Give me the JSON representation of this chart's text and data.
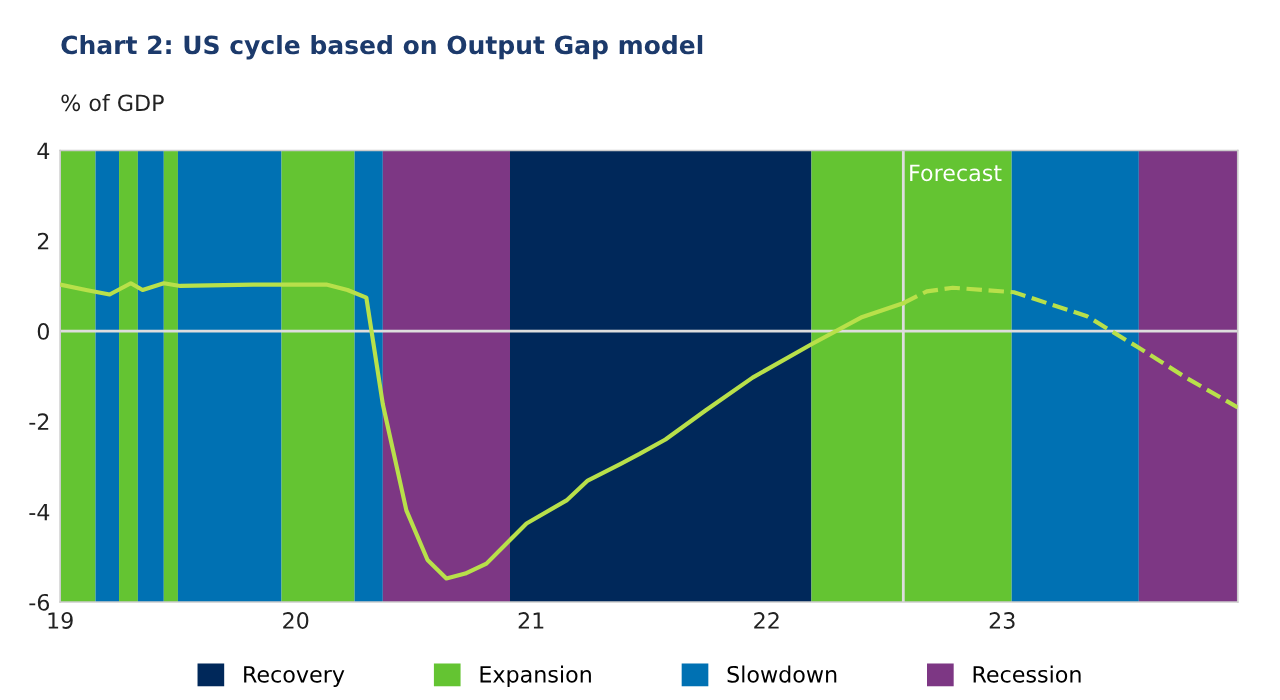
{
  "chart_data": {
    "type": "line",
    "title": "Chart 2: US cycle based on Output Gap model",
    "ylabel": "% of GDP",
    "series": [
      {
        "color": "#b8e04a",
        "line_style": "solid",
        "x": [
          2019.0,
          2019.11,
          2019.21,
          2019.3,
          2019.35,
          2019.44,
          2019.51,
          2019.82,
          2020.13,
          2020.22,
          2020.3,
          2020.37,
          2020.47,
          2020.56,
          2020.64,
          2020.72,
          2020.81,
          2020.98,
          2021.15,
          2021.24,
          2021.38,
          2021.46,
          2021.57,
          2021.74,
          2021.94,
          2022.19,
          2022.4,
          2022.58
        ],
        "values": [
          1.03,
          0.91,
          0.81,
          1.06,
          0.91,
          1.06,
          1.0,
          1.03,
          1.03,
          0.91,
          0.74,
          -1.62,
          -3.97,
          -5.07,
          -5.48,
          -5.37,
          -5.15,
          -4.26,
          -3.75,
          -3.31,
          -2.94,
          -2.72,
          -2.4,
          -1.76,
          -1.03,
          -0.29,
          0.3,
          0.62
        ]
      },
      {
        "color": "#b8e04a",
        "line_style": "dashed",
        "x": [
          2022.58,
          2022.68,
          2022.79,
          2023.05,
          2023.36,
          2023.58,
          2023.78,
          2024.0
        ],
        "values": [
          0.62,
          0.88,
          0.96,
          0.86,
          0.33,
          -0.37,
          -1.03,
          -1.69
        ]
      }
    ],
    "bands": [
      {
        "axis": "x",
        "from": 2019.0,
        "to": 2019.15,
        "label": "Expansion",
        "color": "#64c432"
      },
      {
        "axis": "x",
        "from": 2019.15,
        "to": 2019.25,
        "label": "Slowdown",
        "color": "#0071b3"
      },
      {
        "axis": "x",
        "from": 2019.25,
        "to": 2019.33,
        "color": "#64c432"
      },
      {
        "axis": "x",
        "from": 2019.33,
        "to": 2019.44,
        "color": "#0071b3"
      },
      {
        "axis": "x",
        "from": 2019.44,
        "to": 2019.5,
        "color": "#64c432"
      },
      {
        "axis": "x",
        "from": 2019.5,
        "to": 2019.94,
        "color": "#0071b3"
      },
      {
        "axis": "x",
        "from": 2019.94,
        "to": 2020.25,
        "color": "#64c432"
      },
      {
        "axis": "x",
        "from": 2020.25,
        "to": 2020.37,
        "color": "#0071b3"
      },
      {
        "axis": "x",
        "from": 2020.37,
        "to": 2020.91,
        "label": "Recession",
        "color": "#7d3784"
      },
      {
        "axis": "x",
        "from": 2020.91,
        "to": 2022.19,
        "label": "Recovery",
        "color": "#00285a"
      },
      {
        "axis": "x",
        "from": 2022.19,
        "to": 2023.04,
        "color": "#64c432"
      },
      {
        "axis": "x",
        "from": 2023.04,
        "to": 2023.58,
        "color": "#0071b3"
      },
      {
        "axis": "x",
        "from": 2023.58,
        "to": 2024.0,
        "color": "#7d3784"
      }
    ],
    "ref_lines": [
      {
        "axis": "y",
        "value": 0,
        "color": "#dddddd"
      },
      {
        "axis": "x",
        "value": 2022.58,
        "label": "Forecast",
        "color": "#dddddd"
      }
    ],
    "xlim": [
      2019,
      2024
    ],
    "xticks": [
      {
        "value": 2019,
        "label": "19"
      },
      {
        "value": 2020,
        "label": "20"
      },
      {
        "value": 2021,
        "label": "21"
      },
      {
        "value": 2022,
        "label": "22"
      },
      {
        "value": 2023,
        "label": "23"
      }
    ],
    "ylim": [
      -6,
      4
    ],
    "yticks": [
      -6,
      -4,
      -2,
      0,
      2,
      4
    ],
    "grid": false,
    "legend": "bottom"
  }
}
